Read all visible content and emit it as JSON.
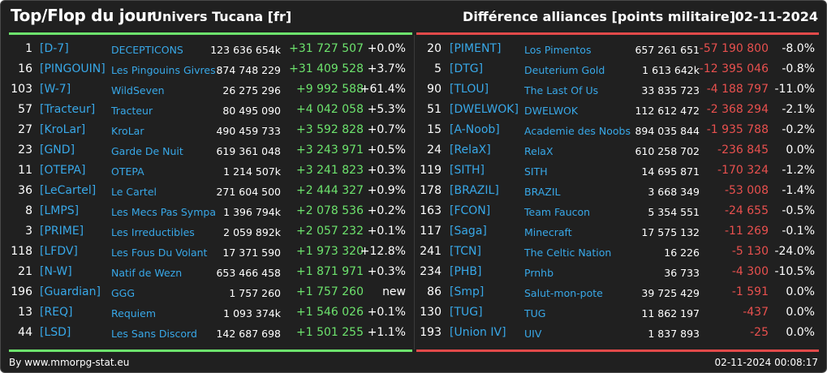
{
  "header": {
    "title": "Top/Flop du jour",
    "universe": "Univers Tucana [fr]",
    "subtitle": "Différence alliances [points militaire]",
    "date": "02-11-2024"
  },
  "colors": {
    "background": "#202020",
    "gain": "#6de36d",
    "loss": "#e8504e",
    "link": "#38a8e8"
  },
  "top": [
    {
      "rank": "1",
      "tag": "[D-7]",
      "name": "DECEPTICONS",
      "points": "123 636 654k",
      "diff": "+31 727 507",
      "pct": "+0.0%"
    },
    {
      "rank": "16",
      "tag": "[PINGOUIN]",
      "name": "Les Pingouins Givres",
      "points": "874 748 229",
      "diff": "+31 409 528",
      "pct": "+3.7%"
    },
    {
      "rank": "103",
      "tag": "[W-7]",
      "name": "WildSeven",
      "points": "26 275 296",
      "diff": "+9 992 588",
      "pct": "+61.4%"
    },
    {
      "rank": "57",
      "tag": "[Tracteur]",
      "name": "Tracteur",
      "points": "80 495 090",
      "diff": "+4 042 058",
      "pct": "+5.3%"
    },
    {
      "rank": "27",
      "tag": "[KroLar]",
      "name": "KroLar",
      "points": "490 459 733",
      "diff": "+3 592 828",
      "pct": "+0.7%"
    },
    {
      "rank": "23",
      "tag": "[GND]",
      "name": "Garde De Nuit",
      "points": "619 361 048",
      "diff": "+3 243 971",
      "pct": "+0.5%"
    },
    {
      "rank": "11",
      "tag": "[OTEPA]",
      "name": "OTEPA",
      "points": "1 214 507k",
      "diff": "+3 241 823",
      "pct": "+0.3%"
    },
    {
      "rank": "36",
      "tag": "[LeCartel]",
      "name": "Le Cartel",
      "points": "271 604 500",
      "diff": "+2 444 327",
      "pct": "+0.9%"
    },
    {
      "rank": "8",
      "tag": "[LMPS]",
      "name": "Les Mecs Pas Sympa",
      "points": "1 396 794k",
      "diff": "+2 078 536",
      "pct": "+0.2%"
    },
    {
      "rank": "3",
      "tag": "[PRIME]",
      "name": "Les Irreductibles",
      "points": "2 059 892k",
      "diff": "+2 057 232",
      "pct": "+0.1%"
    },
    {
      "rank": "118",
      "tag": "[LFDV]",
      "name": "Les Fous Du Volant",
      "points": "17 371 590",
      "diff": "+1 973 320",
      "pct": "+12.8%"
    },
    {
      "rank": "21",
      "tag": "[N-W]",
      "name": "Natif de Wezn",
      "points": "653 466 458",
      "diff": "+1 871 971",
      "pct": "+0.3%"
    },
    {
      "rank": "196",
      "tag": "[Guardian]",
      "name": "GGG",
      "points": "1 757 260",
      "diff": "+1 757 260",
      "pct": "new"
    },
    {
      "rank": "13",
      "tag": "[REQ]",
      "name": "Requiem",
      "points": "1 093 374k",
      "diff": "+1 546 026",
      "pct": "+0.1%"
    },
    {
      "rank": "44",
      "tag": "[LSD]",
      "name": "Les Sans Discord",
      "points": "142 687 698",
      "diff": "+1 501 255",
      "pct": "+1.1%"
    }
  ],
  "flop": [
    {
      "rank": "20",
      "tag": "[PIMENT]",
      "name": "Los Pimentos",
      "points": "657 261 651",
      "diff": "-57 190 800",
      "pct": "-8.0%"
    },
    {
      "rank": "5",
      "tag": "[DTG]",
      "name": "Deuterium Gold",
      "points": "1 613 642k",
      "diff": "-12 395 046",
      "pct": "-0.8%"
    },
    {
      "rank": "90",
      "tag": "[TLOU]",
      "name": "The Last Of Us",
      "points": "33 835 723",
      "diff": "-4 188 797",
      "pct": "-11.0%"
    },
    {
      "rank": "51",
      "tag": "[DWELWOK]",
      "name": "DWELWOK",
      "points": "112 612 472",
      "diff": "-2 368 294",
      "pct": "-2.1%"
    },
    {
      "rank": "15",
      "tag": "[A-Noob]",
      "name": "Academie des Noobs",
      "points": "894 035 844",
      "diff": "-1 935 788",
      "pct": "-0.2%"
    },
    {
      "rank": "24",
      "tag": "[RelaX]",
      "name": "RelaX",
      "points": "610 258 702",
      "diff": "-236 845",
      "pct": "0.0%"
    },
    {
      "rank": "119",
      "tag": "[SITH]",
      "name": "SITH",
      "points": "14 695 871",
      "diff": "-170 324",
      "pct": "-1.2%"
    },
    {
      "rank": "178",
      "tag": "[BRAZIL]",
      "name": "BRAZIL",
      "points": "3 668 349",
      "diff": "-53 008",
      "pct": "-1.4%"
    },
    {
      "rank": "163",
      "tag": "[FCON]",
      "name": "Team Faucon",
      "points": "5 354 551",
      "diff": "-24 655",
      "pct": "-0.5%"
    },
    {
      "rank": "117",
      "tag": "[Saga]",
      "name": "Minecraft",
      "points": "17 575 132",
      "diff": "-11 269",
      "pct": "-0.1%"
    },
    {
      "rank": "241",
      "tag": "[TCN]",
      "name": "The Celtic Nation",
      "points": "16 226",
      "diff": "-5 130",
      "pct": "-24.0%"
    },
    {
      "rank": "234",
      "tag": "[PHB]",
      "name": "Prnhb",
      "points": "36 733",
      "diff": "-4 300",
      "pct": "-10.5%"
    },
    {
      "rank": "86",
      "tag": "[Smp]",
      "name": "Salut-mon-pote",
      "points": "39 725 429",
      "diff": "-1 591",
      "pct": "0.0%"
    },
    {
      "rank": "130",
      "tag": "[TUG]",
      "name": "TUG",
      "points": "11 862 197",
      "diff": "-437",
      "pct": "0.0%"
    },
    {
      "rank": "193",
      "tag": "[Union IV]",
      "name": "UIV",
      "points": "1 837 893",
      "diff": "-25",
      "pct": "0.0%"
    }
  ],
  "footer": {
    "credit": "By www.mmorpg-stat.eu",
    "timestamp": "02-11-2024 00:08:17"
  }
}
